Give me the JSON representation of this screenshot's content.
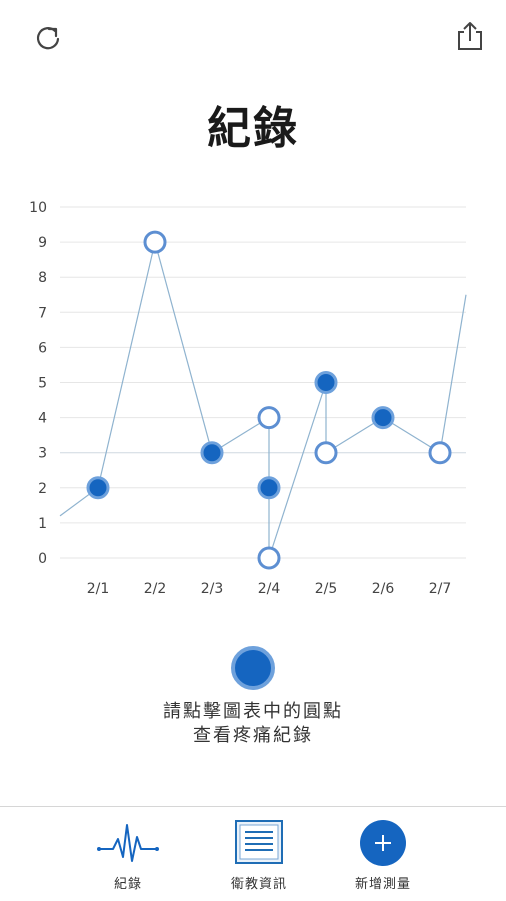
{
  "header": {
    "title": "紀錄",
    "refresh_icon": "refresh-icon",
    "share_icon": "share-icon"
  },
  "chart_data": {
    "type": "scatter",
    "categories": [
      "2/1",
      "2/2",
      "2/3",
      "2/4",
      "2/5",
      "2/6",
      "2/7"
    ],
    "yticks": [
      "0",
      "1",
      "2",
      "3",
      "4",
      "5",
      "6",
      "7",
      "8",
      "9",
      "10"
    ],
    "ylim": [
      0,
      10
    ],
    "grid": true,
    "line_color": "#8fb3cf",
    "filled_color": "#1565c0",
    "hollow_color": "#5d8fd2",
    "points": [
      {
        "x": "2/1",
        "y": 2,
        "style": "filled"
      },
      {
        "x": "2/2",
        "y": 9,
        "style": "hollow"
      },
      {
        "x": "2/3",
        "y": 3,
        "style": "filled"
      },
      {
        "x": "2/4",
        "y": 4,
        "style": "hollow"
      },
      {
        "x": "2/4",
        "y": 2,
        "style": "filled"
      },
      {
        "x": "2/4",
        "y": 0,
        "style": "hollow"
      },
      {
        "x": "2/5",
        "y": 5,
        "style": "filled"
      },
      {
        "x": "2/5",
        "y": 3,
        "style": "hollow"
      },
      {
        "x": "2/6",
        "y": 4,
        "style": "filled"
      },
      {
        "x": "2/7",
        "y": 3,
        "style": "hollow"
      }
    ],
    "lines": [
      {
        "from": [
          "start",
          1.2
        ],
        "to": [
          "2/1",
          2
        ]
      },
      {
        "from": [
          "2/1",
          2
        ],
        "to": [
          "2/2",
          9
        ]
      },
      {
        "from": [
          "2/2",
          9
        ],
        "to": [
          "2/3",
          3
        ]
      },
      {
        "from": [
          "2/3",
          3
        ],
        "to": [
          "2/4",
          4
        ]
      },
      {
        "from": [
          "2/4",
          4
        ],
        "to": [
          "2/4",
          0
        ]
      },
      {
        "from": [
          "2/4",
          0
        ],
        "to": [
          "2/5",
          5
        ]
      },
      {
        "from": [
          "2/5",
          5
        ],
        "to": [
          "2/5",
          3
        ]
      },
      {
        "from": [
          "2/5",
          3
        ],
        "to": [
          "2/6",
          4
        ]
      },
      {
        "from": [
          "2/6",
          4
        ],
        "to": [
          "2/7",
          3
        ]
      },
      {
        "from": [
          "2/7",
          3
        ],
        "to": [
          "end",
          7.5
        ]
      }
    ]
  },
  "hint": {
    "line1": "請點擊圖表中的圓點",
    "line2": "查看疼痛紀錄",
    "icon": "filled-dot-icon"
  },
  "tabbar": {
    "records": {
      "label": "紀錄",
      "icon": "heartbeat-icon"
    },
    "education": {
      "label": "衛教資訊",
      "icon": "document-icon"
    },
    "add": {
      "label": "新增測量",
      "icon": "plus-circle-icon"
    }
  },
  "colors": {
    "accent": "#1565c0",
    "grid": "#e6e6e6"
  }
}
